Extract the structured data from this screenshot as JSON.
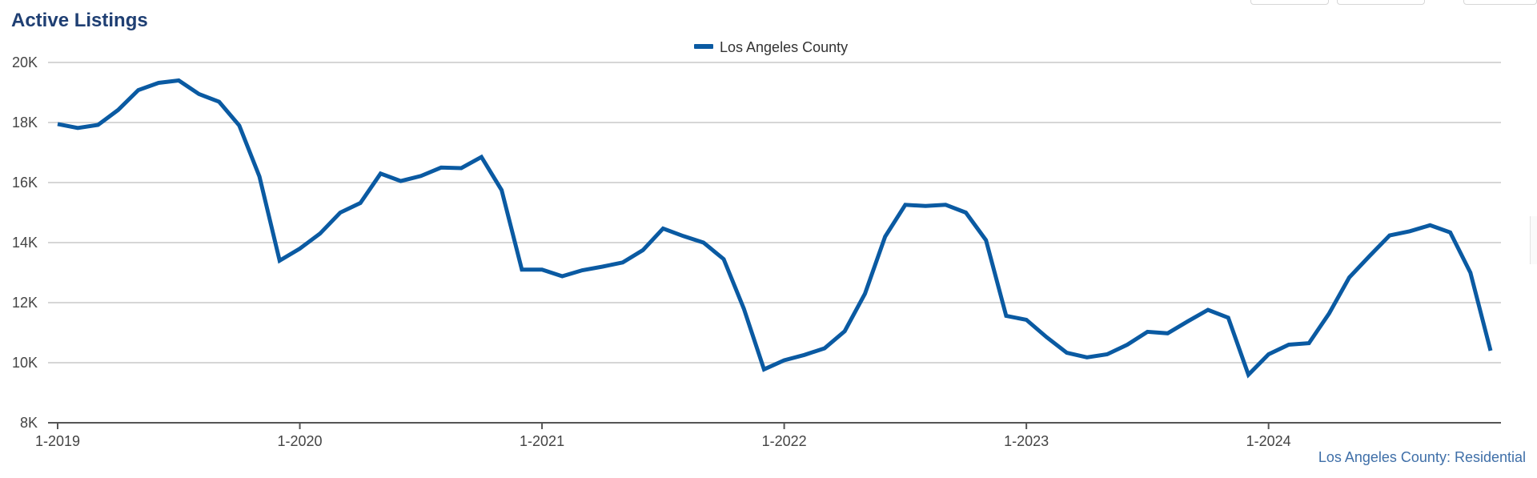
{
  "page": {
    "title": "Active Listings",
    "footer": "Los Angeles County: Residential"
  },
  "colors": {
    "series": "#0a5aa2",
    "grid": "#c8c8c8",
    "title": "#1f3f73"
  },
  "chart_data": {
    "type": "line",
    "title": "Active Listings",
    "legend_position": "top-center",
    "grid": true,
    "ylim": [
      8000,
      20000
    ],
    "y_ticks": [
      {
        "value": 20000,
        "label": "20K"
      },
      {
        "value": 18000,
        "label": "18K"
      },
      {
        "value": 16000,
        "label": "16K"
      },
      {
        "value": 14000,
        "label": "14K"
      },
      {
        "value": 12000,
        "label": "12K"
      },
      {
        "value": 10000,
        "label": "10K"
      },
      {
        "value": 8000,
        "label": "8K"
      }
    ],
    "x_ticks": [
      "1-2019",
      "1-2020",
      "1-2021",
      "1-2022",
      "1-2023",
      "1-2024"
    ],
    "x": [
      "1-2019",
      "2-2019",
      "3-2019",
      "4-2019",
      "5-2019",
      "6-2019",
      "7-2019",
      "8-2019",
      "9-2019",
      "10-2019",
      "11-2019",
      "12-2019",
      "1-2020",
      "2-2020",
      "3-2020",
      "4-2020",
      "5-2020",
      "6-2020",
      "7-2020",
      "8-2020",
      "9-2020",
      "10-2020",
      "11-2020",
      "12-2020",
      "1-2021",
      "2-2021",
      "3-2021",
      "4-2021",
      "5-2021",
      "6-2021",
      "7-2021",
      "8-2021",
      "9-2021",
      "10-2021",
      "11-2021",
      "12-2021",
      "1-2022",
      "2-2022",
      "3-2022",
      "4-2022",
      "5-2022",
      "6-2022",
      "7-2022",
      "8-2022",
      "9-2022",
      "10-2022",
      "11-2022",
      "12-2022",
      "1-2023",
      "2-2023",
      "3-2023",
      "4-2023",
      "5-2023",
      "6-2023",
      "7-2023",
      "8-2023",
      "9-2023",
      "10-2023",
      "11-2023",
      "12-2023",
      "1-2024",
      "2-2024",
      "3-2024",
      "4-2024",
      "5-2024",
      "6-2024",
      "7-2024",
      "8-2024",
      "9-2024",
      "10-2024",
      "11-2024",
      "12-2024"
    ],
    "series": [
      {
        "name": "Los Angeles County",
        "values": [
          17950,
          17820,
          17920,
          18420,
          19080,
          19320,
          19400,
          18950,
          18690,
          17900,
          16200,
          13400,
          13800,
          14300,
          15000,
          15320,
          16300,
          16050,
          16220,
          16500,
          16480,
          16850,
          15750,
          13100,
          13100,
          12880,
          13080,
          13200,
          13340,
          13750,
          14470,
          14220,
          14000,
          13450,
          11800,
          9780,
          10080,
          10260,
          10480,
          11050,
          12300,
          14200,
          15260,
          15220,
          15260,
          15000,
          14080,
          11560,
          11430,
          10850,
          10330,
          10180,
          10280,
          10600,
          11030,
          10980,
          11380,
          11760,
          11500,
          9600,
          10280,
          10600,
          10650,
          11640,
          12840,
          13550,
          14240,
          14380,
          14580,
          14340,
          13000,
          10400
        ]
      }
    ]
  }
}
